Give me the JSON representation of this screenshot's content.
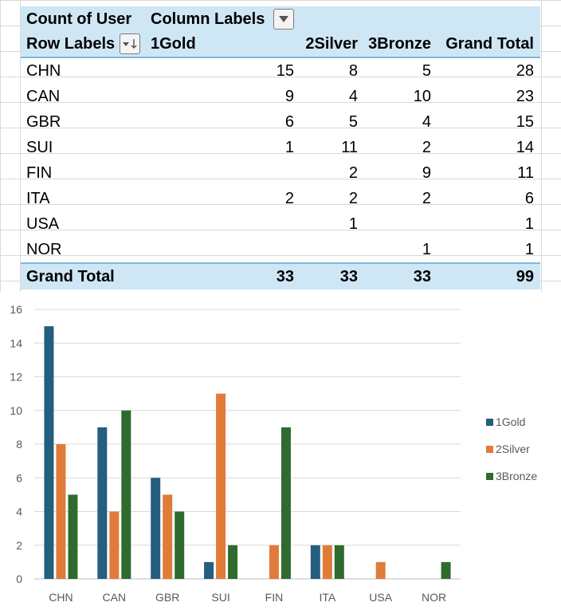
{
  "pivot": {
    "value_header": "Count of User",
    "column_labels_header": "Column Labels",
    "row_labels_header": "Row Labels",
    "columns": [
      "1Gold",
      "2Silver",
      "3Bronze",
      "Grand Total"
    ],
    "rows": [
      {
        "label": "CHN",
        "gold": "15",
        "silver": "8",
        "bronze": "5",
        "total": "28"
      },
      {
        "label": "CAN",
        "gold": "9",
        "silver": "4",
        "bronze": "10",
        "total": "23"
      },
      {
        "label": "GBR",
        "gold": "6",
        "silver": "5",
        "bronze": "4",
        "total": "15"
      },
      {
        "label": "SUI",
        "gold": "1",
        "silver": "11",
        "bronze": "2",
        "total": "14"
      },
      {
        "label": "FIN",
        "gold": "",
        "silver": "2",
        "bronze": "9",
        "total": "11"
      },
      {
        "label": "ITA",
        "gold": "2",
        "silver": "2",
        "bronze": "2",
        "total": "6"
      },
      {
        "label": "USA",
        "gold": "",
        "silver": "1",
        "bronze": "",
        "total": "1"
      },
      {
        "label": "NOR",
        "gold": "",
        "silver": "",
        "bronze": "1",
        "total": "1"
      }
    ],
    "grand_total": {
      "label": "Grand Total",
      "gold": "33",
      "silver": "33",
      "bronze": "33",
      "total": "99"
    }
  },
  "chart_data": {
    "type": "bar",
    "categories": [
      "CHN",
      "CAN",
      "GBR",
      "SUI",
      "FIN",
      "ITA",
      "USA",
      "NOR"
    ],
    "series": [
      {
        "name": "1Gold",
        "color": "#255e7e",
        "values": [
          15,
          9,
          6,
          1,
          0,
          2,
          0,
          0
        ]
      },
      {
        "name": "2Silver",
        "color": "#e07b39",
        "values": [
          8,
          4,
          5,
          11,
          2,
          2,
          1,
          0
        ]
      },
      {
        "name": "3Bronze",
        "color": "#2f6b2f",
        "values": [
          5,
          10,
          4,
          2,
          9,
          2,
          0,
          1
        ]
      }
    ],
    "ylim": [
      0,
      16
    ],
    "yticks": [
      0,
      2,
      4,
      6,
      8,
      10,
      12,
      14,
      16
    ],
    "grid": true,
    "legend": "right"
  }
}
